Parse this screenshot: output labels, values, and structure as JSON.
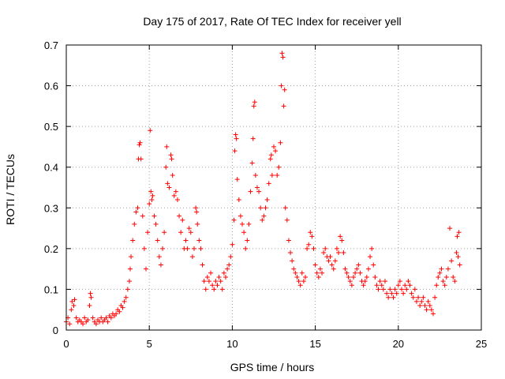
{
  "chart_data": {
    "type": "scatter",
    "title": "Day 175 of 2017, Rate Of TEC Index for receiver yell",
    "xlabel": "GPS time / hours",
    "ylabel": "ROTI / TECUs",
    "xlim": [
      0,
      25
    ],
    "ylim": [
      0,
      0.7
    ],
    "xticks": [
      0,
      5,
      10,
      15,
      20,
      25
    ],
    "xtick_labels": [
      "0",
      "5",
      "10",
      "15",
      "20",
      "25"
    ],
    "yticks": [
      0,
      0.1,
      0.2,
      0.3,
      0.4,
      0.5,
      0.6,
      0.7
    ],
    "ytick_labels": [
      "0",
      "0.1",
      "0.2",
      "0.3",
      "0.4",
      "0.5",
      "0.6",
      "0.7"
    ],
    "grid": true,
    "marker": "+",
    "marker_color": "#ff0000",
    "series": [
      {
        "name": "ROTI",
        "points": [
          [
            0.0,
            0.02
          ],
          [
            0.1,
            0.03
          ],
          [
            0.2,
            0.015
          ],
          [
            0.3,
            0.05
          ],
          [
            0.35,
            0.07
          ],
          [
            0.45,
            0.06
          ],
          [
            0.5,
            0.075
          ],
          [
            0.6,
            0.03
          ],
          [
            0.7,
            0.02
          ],
          [
            0.8,
            0.025
          ],
          [
            0.9,
            0.02
          ],
          [
            1.0,
            0.015
          ],
          [
            1.1,
            0.03
          ],
          [
            1.2,
            0.02
          ],
          [
            1.3,
            0.025
          ],
          [
            1.4,
            0.06
          ],
          [
            1.45,
            0.09
          ],
          [
            1.5,
            0.08
          ],
          [
            1.6,
            0.03
          ],
          [
            1.7,
            0.02
          ],
          [
            1.8,
            0.015
          ],
          [
            1.9,
            0.025
          ],
          [
            2.0,
            0.02
          ],
          [
            2.1,
            0.03
          ],
          [
            2.2,
            0.02
          ],
          [
            2.3,
            0.025
          ],
          [
            2.4,
            0.03
          ],
          [
            2.5,
            0.02
          ],
          [
            2.6,
            0.035
          ],
          [
            2.7,
            0.03
          ],
          [
            2.8,
            0.04
          ],
          [
            2.9,
            0.035
          ],
          [
            3.0,
            0.04
          ],
          [
            3.1,
            0.05
          ],
          [
            3.2,
            0.045
          ],
          [
            3.3,
            0.06
          ],
          [
            3.4,
            0.055
          ],
          [
            3.5,
            0.07
          ],
          [
            3.6,
            0.08
          ],
          [
            3.7,
            0.1
          ],
          [
            3.8,
            0.12
          ],
          [
            3.85,
            0.15
          ],
          [
            3.9,
            0.18
          ],
          [
            4.0,
            0.22
          ],
          [
            4.1,
            0.26
          ],
          [
            4.2,
            0.29
          ],
          [
            4.3,
            0.3
          ],
          [
            4.35,
            0.42
          ],
          [
            4.4,
            0.455
          ],
          [
            4.45,
            0.46
          ],
          [
            4.5,
            0.42
          ],
          [
            4.6,
            0.28
          ],
          [
            4.7,
            0.2
          ],
          [
            4.8,
            0.15
          ],
          [
            4.9,
            0.24
          ],
          [
            5.0,
            0.31
          ],
          [
            5.05,
            0.49
          ],
          [
            5.1,
            0.34
          ],
          [
            5.15,
            0.32
          ],
          [
            5.2,
            0.33
          ],
          [
            5.3,
            0.28
          ],
          [
            5.4,
            0.26
          ],
          [
            5.5,
            0.22
          ],
          [
            5.6,
            0.18
          ],
          [
            5.7,
            0.16
          ],
          [
            5.8,
            0.2
          ],
          [
            5.9,
            0.24
          ],
          [
            6.0,
            0.4
          ],
          [
            6.05,
            0.45
          ],
          [
            6.1,
            0.36
          ],
          [
            6.2,
            0.35
          ],
          [
            6.3,
            0.43
          ],
          [
            6.35,
            0.42
          ],
          [
            6.4,
            0.38
          ],
          [
            6.5,
            0.33
          ],
          [
            6.6,
            0.34
          ],
          [
            6.7,
            0.32
          ],
          [
            6.8,
            0.28
          ],
          [
            6.9,
            0.24
          ],
          [
            7.0,
            0.27
          ],
          [
            7.1,
            0.2
          ],
          [
            7.2,
            0.22
          ],
          [
            7.3,
            0.2
          ],
          [
            7.4,
            0.25
          ],
          [
            7.5,
            0.24
          ],
          [
            7.6,
            0.18
          ],
          [
            7.7,
            0.2
          ],
          [
            7.8,
            0.3
          ],
          [
            7.85,
            0.29
          ],
          [
            7.9,
            0.26
          ],
          [
            8.0,
            0.22
          ],
          [
            8.1,
            0.2
          ],
          [
            8.2,
            0.16
          ],
          [
            8.3,
            0.12
          ],
          [
            8.4,
            0.1
          ],
          [
            8.5,
            0.13
          ],
          [
            8.6,
            0.12
          ],
          [
            8.7,
            0.14
          ],
          [
            8.8,
            0.11
          ],
          [
            8.9,
            0.1
          ],
          [
            9.0,
            0.12
          ],
          [
            9.1,
            0.11
          ],
          [
            9.2,
            0.13
          ],
          [
            9.3,
            0.12
          ],
          [
            9.4,
            0.1
          ],
          [
            9.5,
            0.14
          ],
          [
            9.6,
            0.13
          ],
          [
            9.7,
            0.15
          ],
          [
            9.8,
            0.16
          ],
          [
            9.9,
            0.18
          ],
          [
            10.0,
            0.21
          ],
          [
            10.1,
            0.27
          ],
          [
            10.15,
            0.44
          ],
          [
            10.2,
            0.48
          ],
          [
            10.25,
            0.47
          ],
          [
            10.3,
            0.37
          ],
          [
            10.4,
            0.32
          ],
          [
            10.5,
            0.28
          ],
          [
            10.6,
            0.26
          ],
          [
            10.7,
            0.24
          ],
          [
            10.8,
            0.2
          ],
          [
            10.9,
            0.22
          ],
          [
            11.0,
            0.26
          ],
          [
            11.1,
            0.34
          ],
          [
            11.2,
            0.41
          ],
          [
            11.25,
            0.47
          ],
          [
            11.3,
            0.55
          ],
          [
            11.35,
            0.56
          ],
          [
            11.4,
            0.38
          ],
          [
            11.5,
            0.35
          ],
          [
            11.6,
            0.34
          ],
          [
            11.7,
            0.3
          ],
          [
            11.8,
            0.27
          ],
          [
            11.9,
            0.28
          ],
          [
            12.0,
            0.3
          ],
          [
            12.1,
            0.32
          ],
          [
            12.2,
            0.36
          ],
          [
            12.3,
            0.42
          ],
          [
            12.35,
            0.43
          ],
          [
            12.4,
            0.38
          ],
          [
            12.5,
            0.45
          ],
          [
            12.6,
            0.44
          ],
          [
            12.7,
            0.38
          ],
          [
            12.8,
            0.4
          ],
          [
            12.9,
            0.46
          ],
          [
            12.95,
            0.6
          ],
          [
            13.0,
            0.68
          ],
          [
            13.05,
            0.67
          ],
          [
            13.1,
            0.55
          ],
          [
            13.15,
            0.59
          ],
          [
            13.2,
            0.3
          ],
          [
            13.3,
            0.27
          ],
          [
            13.4,
            0.22
          ],
          [
            13.5,
            0.19
          ],
          [
            13.6,
            0.17
          ],
          [
            13.7,
            0.15
          ],
          [
            13.8,
            0.14
          ],
          [
            13.9,
            0.13
          ],
          [
            14.0,
            0.12
          ],
          [
            14.1,
            0.11
          ],
          [
            14.2,
            0.14
          ],
          [
            14.3,
            0.12
          ],
          [
            14.4,
            0.13
          ],
          [
            14.5,
            0.2
          ],
          [
            14.6,
            0.21
          ],
          [
            14.7,
            0.24
          ],
          [
            14.8,
            0.23
          ],
          [
            14.9,
            0.2
          ],
          [
            15.0,
            0.16
          ],
          [
            15.1,
            0.14
          ],
          [
            15.2,
            0.13
          ],
          [
            15.3,
            0.15
          ],
          [
            15.4,
            0.14
          ],
          [
            15.5,
            0.19
          ],
          [
            15.6,
            0.2
          ],
          [
            15.7,
            0.18
          ],
          [
            15.8,
            0.17
          ],
          [
            15.9,
            0.18
          ],
          [
            16.0,
            0.16
          ],
          [
            16.1,
            0.15
          ],
          [
            16.2,
            0.17
          ],
          [
            16.3,
            0.2
          ],
          [
            16.4,
            0.19
          ],
          [
            16.5,
            0.23
          ],
          [
            16.6,
            0.22
          ],
          [
            16.7,
            0.19
          ],
          [
            16.8,
            0.15
          ],
          [
            16.9,
            0.14
          ],
          [
            17.0,
            0.13
          ],
          [
            17.1,
            0.12
          ],
          [
            17.2,
            0.11
          ],
          [
            17.3,
            0.13
          ],
          [
            17.4,
            0.14
          ],
          [
            17.5,
            0.15
          ],
          [
            17.6,
            0.16
          ],
          [
            17.7,
            0.14
          ],
          [
            17.8,
            0.12
          ],
          [
            17.9,
            0.11
          ],
          [
            18.0,
            0.12
          ],
          [
            18.1,
            0.13
          ],
          [
            18.2,
            0.15
          ],
          [
            18.3,
            0.18
          ],
          [
            18.4,
            0.2
          ],
          [
            18.5,
            0.16
          ],
          [
            18.6,
            0.13
          ],
          [
            18.7,
            0.11
          ],
          [
            18.8,
            0.1
          ],
          [
            18.9,
            0.12
          ],
          [
            19.0,
            0.11
          ],
          [
            19.1,
            0.1
          ],
          [
            19.2,
            0.12
          ],
          [
            19.3,
            0.09
          ],
          [
            19.4,
            0.08
          ],
          [
            19.5,
            0.1
          ],
          [
            19.6,
            0.09
          ],
          [
            19.7,
            0.08
          ],
          [
            19.8,
            0.1
          ],
          [
            19.9,
            0.09
          ],
          [
            20.0,
            0.11
          ],
          [
            20.1,
            0.12
          ],
          [
            20.2,
            0.1
          ],
          [
            20.3,
            0.09
          ],
          [
            20.4,
            0.11
          ],
          [
            20.5,
            0.1
          ],
          [
            20.6,
            0.12
          ],
          [
            20.7,
            0.11
          ],
          [
            20.8,
            0.09
          ],
          [
            20.9,
            0.08
          ],
          [
            21.0,
            0.1
          ],
          [
            21.1,
            0.07
          ],
          [
            21.2,
            0.08
          ],
          [
            21.3,
            0.06
          ],
          [
            21.4,
            0.07
          ],
          [
            21.5,
            0.08
          ],
          [
            21.6,
            0.06
          ],
          [
            21.7,
            0.05
          ],
          [
            21.8,
            0.07
          ],
          [
            21.9,
            0.06
          ],
          [
            22.0,
            0.05
          ],
          [
            22.1,
            0.04
          ],
          [
            22.2,
            0.08
          ],
          [
            22.3,
            0.11
          ],
          [
            22.4,
            0.13
          ],
          [
            22.5,
            0.14
          ],
          [
            22.6,
            0.15
          ],
          [
            22.7,
            0.12
          ],
          [
            22.8,
            0.11
          ],
          [
            22.9,
            0.13
          ],
          [
            23.0,
            0.15
          ],
          [
            23.1,
            0.25
          ],
          [
            23.2,
            0.17
          ],
          [
            23.3,
            0.13
          ],
          [
            23.4,
            0.12
          ],
          [
            23.5,
            0.19
          ],
          [
            23.55,
            0.23
          ],
          [
            23.6,
            0.18
          ],
          [
            23.65,
            0.24
          ],
          [
            23.7,
            0.16
          ]
        ]
      }
    ]
  }
}
